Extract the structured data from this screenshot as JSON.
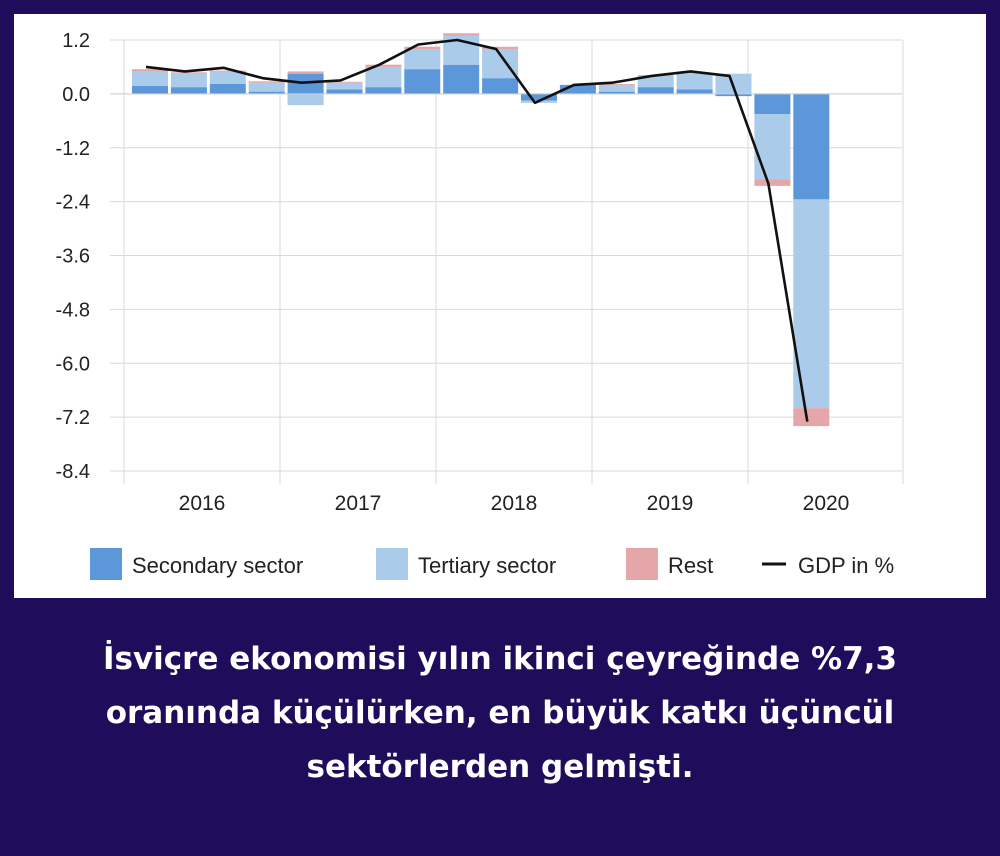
{
  "chart_data": {
    "type": "bar",
    "stacked": true,
    "title": "",
    "xlabel": "",
    "ylabel": "",
    "ylim": [
      -8.4,
      1.2
    ],
    "yticks": [
      "1.2",
      "0.0",
      "-1.2",
      "-2.4",
      "-3.6",
      "-4.8",
      "-6.0",
      "-7.2",
      "-8.4"
    ],
    "ytick_values": [
      1.2,
      0.0,
      -1.2,
      -2.4,
      -3.6,
      -4.8,
      -6.0,
      -7.2,
      -8.4
    ],
    "year_labels": [
      "2016",
      "2017",
      "2018",
      "2019",
      "2020"
    ],
    "grid": true,
    "legend_position": "bottom",
    "x": [
      "2016Q1",
      "2016Q2",
      "2016Q3",
      "2016Q4",
      "2017Q1",
      "2017Q2",
      "2017Q3",
      "2017Q4",
      "2018Q1",
      "2018Q2",
      "2018Q3",
      "2018Q4",
      "2019Q1",
      "2019Q2",
      "2019Q3",
      "2019Q4",
      "2020Q1",
      "2020Q2"
    ],
    "series": [
      {
        "name": "Secondary sector",
        "kind": "bar",
        "color": "#5b97d9",
        "values": [
          0.18,
          0.15,
          0.22,
          0.05,
          0.45,
          0.1,
          0.15,
          0.55,
          0.65,
          0.35,
          -0.15,
          0.2,
          0.05,
          0.15,
          0.1,
          -0.05,
          -0.45,
          -2.35
        ]
      },
      {
        "name": "Tertiary sector",
        "kind": "bar",
        "color": "#abcbea",
        "values": [
          0.32,
          0.3,
          0.28,
          0.2,
          -0.25,
          0.15,
          0.45,
          0.45,
          0.65,
          0.65,
          -0.05,
          0.0,
          0.15,
          0.25,
          0.35,
          0.45,
          -1.45,
          -4.65
        ]
      },
      {
        "name": "Rest",
        "kind": "bar",
        "color": "#e4a6a8",
        "values": [
          0.05,
          0.03,
          0.02,
          0.03,
          0.05,
          0.02,
          0.05,
          0.05,
          0.05,
          0.05,
          0.0,
          0.0,
          0.02,
          0.02,
          0.02,
          0.0,
          -0.15,
          -0.4
        ]
      },
      {
        "name": "GDP in %",
        "kind": "line",
        "color": "#111111",
        "values": [
          0.6,
          0.5,
          0.58,
          0.35,
          0.25,
          0.3,
          0.65,
          1.1,
          1.2,
          1.0,
          -0.2,
          0.2,
          0.25,
          0.4,
          0.5,
          0.4,
          -2.0,
          -7.3
        ]
      }
    ]
  },
  "caption": {
    "lines": [
      "İsviçre ekonomisi yılın ikinci çeyreğinde %7,3",
      "oranında küçülürken, en büyük katkı üçüncül",
      "sektörlerden gelmişti."
    ]
  }
}
